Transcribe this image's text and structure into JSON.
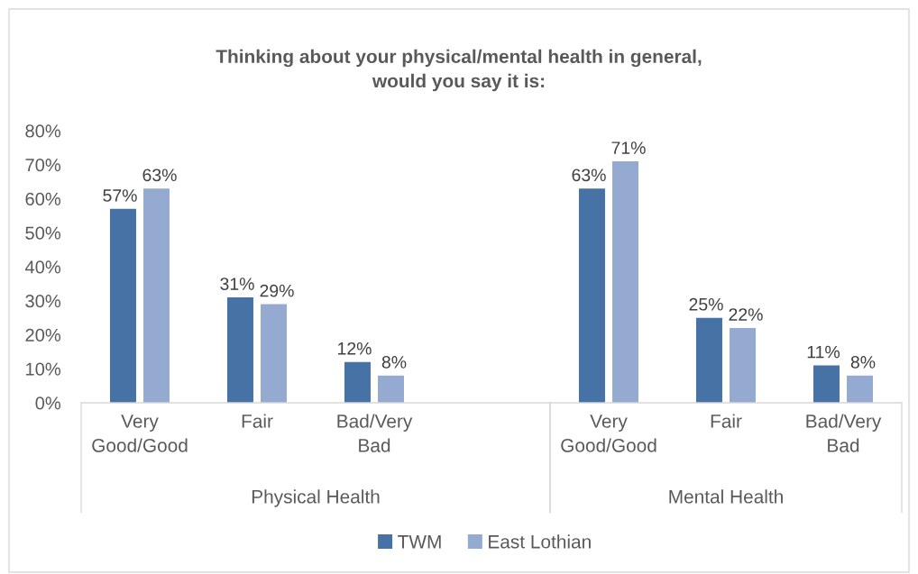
{
  "chart_data": [
    {
      "type": "bar",
      "title": "Thinking about your physical/mental health in general,\nwould you say it is:",
      "xlabel": "Physical Health",
      "categories": [
        "Very Good/Good",
        "Fair",
        "Bad/Very Bad",
        null
      ],
      "series": [
        {
          "name": "TWM",
          "color": "#4672a6",
          "values": [
            57,
            31,
            12,
            null
          ],
          "value_labels": [
            "57%",
            "31%",
            "12%",
            null
          ]
        },
        {
          "name": "East Lothian",
          "color": "#95aad0",
          "values": [
            63,
            29,
            8,
            null
          ],
          "value_labels": [
            "63%",
            "29%",
            "8%",
            null
          ]
        }
      ],
      "ylim": [
        0,
        80
      ],
      "yticks": [
        {
          "value": 0,
          "label": "0%"
        },
        {
          "value": 10,
          "label": "10%"
        },
        {
          "value": 20,
          "label": "20%"
        },
        {
          "value": 30,
          "label": "30%"
        },
        {
          "value": 40,
          "label": "40%"
        },
        {
          "value": 50,
          "label": "50%"
        },
        {
          "value": 60,
          "label": "60%"
        },
        {
          "value": 70,
          "label": "70%"
        },
        {
          "value": 80,
          "label": "80%"
        }
      ],
      "legend": "bottom"
    },
    {
      "type": "bar",
      "xlabel": "Mental Health",
      "categories": [
        "Very Good/Good",
        "Fair",
        "Bad/Very Bad"
      ],
      "series": [
        {
          "color": "#4672a6",
          "values": [
            63,
            25,
            11
          ],
          "value_labels": [
            "63%",
            "25%",
            "11%"
          ]
        },
        {
          "color": "#95aad0",
          "values": [
            71,
            22,
            8
          ],
          "value_labels": [
            "71%",
            "22%",
            "8%"
          ]
        }
      ],
      "ylim": [
        0,
        80
      ],
      "tick_labels": "x"
    }
  ]
}
